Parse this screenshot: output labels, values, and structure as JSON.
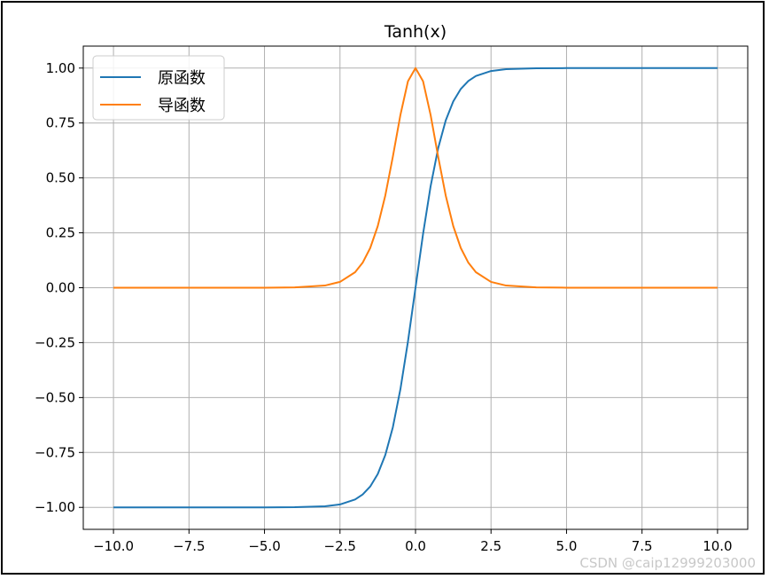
{
  "chart_data": {
    "type": "line",
    "title": "Tanh(x)",
    "xlabel": "",
    "ylabel": "",
    "xlim": [
      -11.0,
      11.0
    ],
    "ylim": [
      -1.1,
      1.1
    ],
    "xticks": [
      -10.0,
      -7.5,
      -5.0,
      -2.5,
      0.0,
      2.5,
      5.0,
      7.5,
      10.0
    ],
    "xtick_labels": [
      "−10.0",
      "−7.5",
      "−5.0",
      "−2.5",
      "0.0",
      "2.5",
      "5.0",
      "7.5",
      "10.0"
    ],
    "yticks": [
      -1.0,
      -0.75,
      -0.5,
      -0.25,
      0.0,
      0.25,
      0.5,
      0.75,
      1.0
    ],
    "ytick_labels": [
      "−1.00",
      "−0.75",
      "−0.50",
      "−0.25",
      "0.00",
      "0.25",
      "0.50",
      "0.75",
      "1.00"
    ],
    "grid": true,
    "legend_position": "upper-left",
    "x": [
      -10,
      -8,
      -6,
      -5,
      -4,
      -3,
      -2.5,
      -2,
      -1.75,
      -1.5,
      -1.25,
      -1,
      -0.75,
      -0.5,
      -0.25,
      0,
      0.25,
      0.5,
      0.75,
      1,
      1.25,
      1.5,
      1.75,
      2,
      2.5,
      3,
      4,
      5,
      6,
      8,
      10
    ],
    "series": [
      {
        "name": "原函数",
        "color": "#1f77b4",
        "values": [
          -1.0,
          -1.0,
          -1.0,
          -0.9999,
          -0.9993,
          -0.9951,
          -0.9866,
          -0.964,
          -0.9414,
          -0.9051,
          -0.8483,
          -0.7616,
          -0.6351,
          -0.4621,
          -0.2449,
          0.0,
          0.2449,
          0.4621,
          0.6351,
          0.7616,
          0.8483,
          0.9051,
          0.9414,
          0.964,
          0.9866,
          0.9951,
          0.9993,
          0.9999,
          1.0,
          1.0,
          1.0
        ]
      },
      {
        "name": "导函数",
        "color": "#ff7f0e",
        "values": [
          0.0,
          0.0,
          0.0,
          0.0002,
          0.0013,
          0.0099,
          0.0266,
          0.0707,
          0.1138,
          0.1807,
          0.2805,
          0.42,
          0.5966,
          0.7864,
          0.94,
          1.0,
          0.94,
          0.7864,
          0.5966,
          0.42,
          0.2805,
          0.1807,
          0.1138,
          0.0707,
          0.0266,
          0.0099,
          0.0013,
          0.0002,
          0.0,
          0.0,
          0.0
        ]
      }
    ]
  },
  "watermark": "CSDN @caip12999203000"
}
